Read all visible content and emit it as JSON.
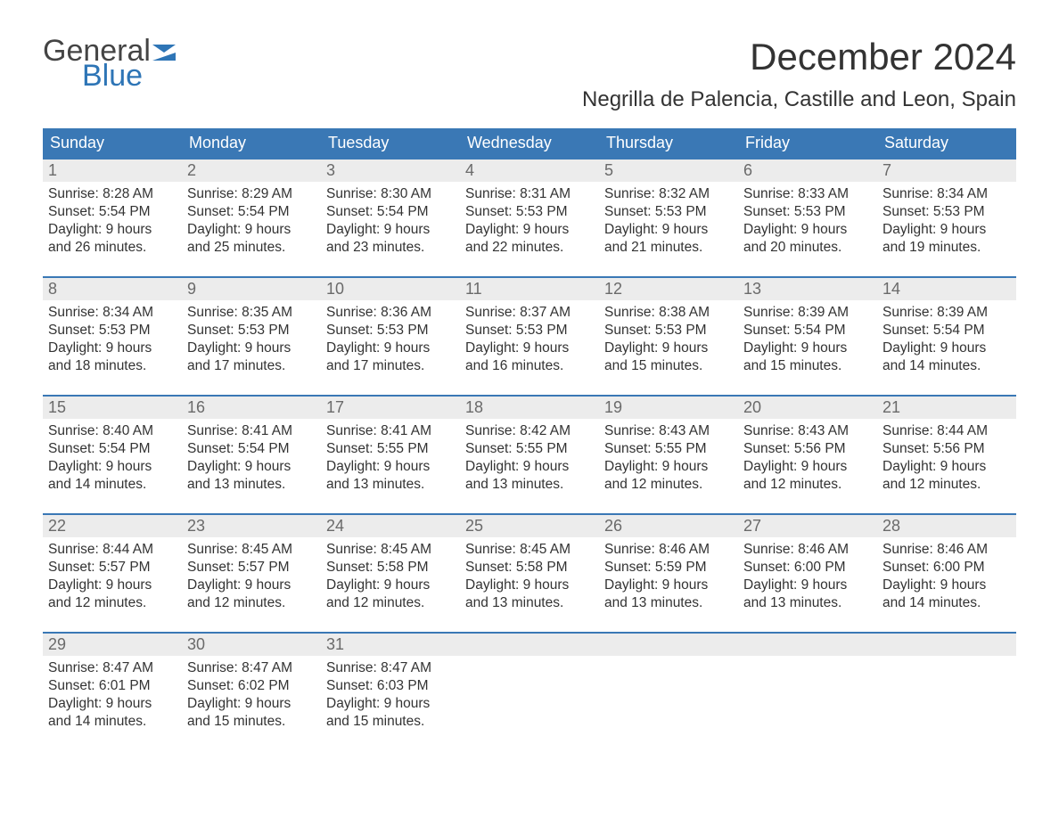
{
  "logo": {
    "text_top": "General",
    "text_bottom": "Blue",
    "flag_color": "#2e75b6"
  },
  "title": "December 2024",
  "location": "Negrilla de Palencia, Castille and Leon, Spain",
  "colors": {
    "header_bg": "#3a78b5",
    "header_text": "#ffffff",
    "daynum_bg": "#ececec",
    "daynum_border": "#3a78b5",
    "daynum_text": "#6a6a6a",
    "body_text": "#333333",
    "logo_blue": "#2e75b6",
    "logo_gray": "#444444",
    "background": "#ffffff"
  },
  "typography": {
    "month_title_fontsize": 42,
    "location_fontsize": 24,
    "weekday_fontsize": 18,
    "daynum_fontsize": 18,
    "details_fontsize": 15.5,
    "logo_fontsize": 34
  },
  "weekdays": [
    "Sunday",
    "Monday",
    "Tuesday",
    "Wednesday",
    "Thursday",
    "Friday",
    "Saturday"
  ],
  "weeks": [
    [
      {
        "day": "1",
        "sunrise": "Sunrise: 8:28 AM",
        "sunset": "Sunset: 5:54 PM",
        "daylight1": "Daylight: 9 hours",
        "daylight2": "and 26 minutes."
      },
      {
        "day": "2",
        "sunrise": "Sunrise: 8:29 AM",
        "sunset": "Sunset: 5:54 PM",
        "daylight1": "Daylight: 9 hours",
        "daylight2": "and 25 minutes."
      },
      {
        "day": "3",
        "sunrise": "Sunrise: 8:30 AM",
        "sunset": "Sunset: 5:54 PM",
        "daylight1": "Daylight: 9 hours",
        "daylight2": "and 23 minutes."
      },
      {
        "day": "4",
        "sunrise": "Sunrise: 8:31 AM",
        "sunset": "Sunset: 5:53 PM",
        "daylight1": "Daylight: 9 hours",
        "daylight2": "and 22 minutes."
      },
      {
        "day": "5",
        "sunrise": "Sunrise: 8:32 AM",
        "sunset": "Sunset: 5:53 PM",
        "daylight1": "Daylight: 9 hours",
        "daylight2": "and 21 minutes."
      },
      {
        "day": "6",
        "sunrise": "Sunrise: 8:33 AM",
        "sunset": "Sunset: 5:53 PM",
        "daylight1": "Daylight: 9 hours",
        "daylight2": "and 20 minutes."
      },
      {
        "day": "7",
        "sunrise": "Sunrise: 8:34 AM",
        "sunset": "Sunset: 5:53 PM",
        "daylight1": "Daylight: 9 hours",
        "daylight2": "and 19 minutes."
      }
    ],
    [
      {
        "day": "8",
        "sunrise": "Sunrise: 8:34 AM",
        "sunset": "Sunset: 5:53 PM",
        "daylight1": "Daylight: 9 hours",
        "daylight2": "and 18 minutes."
      },
      {
        "day": "9",
        "sunrise": "Sunrise: 8:35 AM",
        "sunset": "Sunset: 5:53 PM",
        "daylight1": "Daylight: 9 hours",
        "daylight2": "and 17 minutes."
      },
      {
        "day": "10",
        "sunrise": "Sunrise: 8:36 AM",
        "sunset": "Sunset: 5:53 PM",
        "daylight1": "Daylight: 9 hours",
        "daylight2": "and 17 minutes."
      },
      {
        "day": "11",
        "sunrise": "Sunrise: 8:37 AM",
        "sunset": "Sunset: 5:53 PM",
        "daylight1": "Daylight: 9 hours",
        "daylight2": "and 16 minutes."
      },
      {
        "day": "12",
        "sunrise": "Sunrise: 8:38 AM",
        "sunset": "Sunset: 5:53 PM",
        "daylight1": "Daylight: 9 hours",
        "daylight2": "and 15 minutes."
      },
      {
        "day": "13",
        "sunrise": "Sunrise: 8:39 AM",
        "sunset": "Sunset: 5:54 PM",
        "daylight1": "Daylight: 9 hours",
        "daylight2": "and 15 minutes."
      },
      {
        "day": "14",
        "sunrise": "Sunrise: 8:39 AM",
        "sunset": "Sunset: 5:54 PM",
        "daylight1": "Daylight: 9 hours",
        "daylight2": "and 14 minutes."
      }
    ],
    [
      {
        "day": "15",
        "sunrise": "Sunrise: 8:40 AM",
        "sunset": "Sunset: 5:54 PM",
        "daylight1": "Daylight: 9 hours",
        "daylight2": "and 14 minutes."
      },
      {
        "day": "16",
        "sunrise": "Sunrise: 8:41 AM",
        "sunset": "Sunset: 5:54 PM",
        "daylight1": "Daylight: 9 hours",
        "daylight2": "and 13 minutes."
      },
      {
        "day": "17",
        "sunrise": "Sunrise: 8:41 AM",
        "sunset": "Sunset: 5:55 PM",
        "daylight1": "Daylight: 9 hours",
        "daylight2": "and 13 minutes."
      },
      {
        "day": "18",
        "sunrise": "Sunrise: 8:42 AM",
        "sunset": "Sunset: 5:55 PM",
        "daylight1": "Daylight: 9 hours",
        "daylight2": "and 13 minutes."
      },
      {
        "day": "19",
        "sunrise": "Sunrise: 8:43 AM",
        "sunset": "Sunset: 5:55 PM",
        "daylight1": "Daylight: 9 hours",
        "daylight2": "and 12 minutes."
      },
      {
        "day": "20",
        "sunrise": "Sunrise: 8:43 AM",
        "sunset": "Sunset: 5:56 PM",
        "daylight1": "Daylight: 9 hours",
        "daylight2": "and 12 minutes."
      },
      {
        "day": "21",
        "sunrise": "Sunrise: 8:44 AM",
        "sunset": "Sunset: 5:56 PM",
        "daylight1": "Daylight: 9 hours",
        "daylight2": "and 12 minutes."
      }
    ],
    [
      {
        "day": "22",
        "sunrise": "Sunrise: 8:44 AM",
        "sunset": "Sunset: 5:57 PM",
        "daylight1": "Daylight: 9 hours",
        "daylight2": "and 12 minutes."
      },
      {
        "day": "23",
        "sunrise": "Sunrise: 8:45 AM",
        "sunset": "Sunset: 5:57 PM",
        "daylight1": "Daylight: 9 hours",
        "daylight2": "and 12 minutes."
      },
      {
        "day": "24",
        "sunrise": "Sunrise: 8:45 AM",
        "sunset": "Sunset: 5:58 PM",
        "daylight1": "Daylight: 9 hours",
        "daylight2": "and 12 minutes."
      },
      {
        "day": "25",
        "sunrise": "Sunrise: 8:45 AM",
        "sunset": "Sunset: 5:58 PM",
        "daylight1": "Daylight: 9 hours",
        "daylight2": "and 13 minutes."
      },
      {
        "day": "26",
        "sunrise": "Sunrise: 8:46 AM",
        "sunset": "Sunset: 5:59 PM",
        "daylight1": "Daylight: 9 hours",
        "daylight2": "and 13 minutes."
      },
      {
        "day": "27",
        "sunrise": "Sunrise: 8:46 AM",
        "sunset": "Sunset: 6:00 PM",
        "daylight1": "Daylight: 9 hours",
        "daylight2": "and 13 minutes."
      },
      {
        "day": "28",
        "sunrise": "Sunrise: 8:46 AM",
        "sunset": "Sunset: 6:00 PM",
        "daylight1": "Daylight: 9 hours",
        "daylight2": "and 14 minutes."
      }
    ],
    [
      {
        "day": "29",
        "sunrise": "Sunrise: 8:47 AM",
        "sunset": "Sunset: 6:01 PM",
        "daylight1": "Daylight: 9 hours",
        "daylight2": "and 14 minutes."
      },
      {
        "day": "30",
        "sunrise": "Sunrise: 8:47 AM",
        "sunset": "Sunset: 6:02 PM",
        "daylight1": "Daylight: 9 hours",
        "daylight2": "and 15 minutes."
      },
      {
        "day": "31",
        "sunrise": "Sunrise: 8:47 AM",
        "sunset": "Sunset: 6:03 PM",
        "daylight1": "Daylight: 9 hours",
        "daylight2": "and 15 minutes."
      },
      {
        "day": "",
        "sunrise": "",
        "sunset": "",
        "daylight1": "",
        "daylight2": ""
      },
      {
        "day": "",
        "sunrise": "",
        "sunset": "",
        "daylight1": "",
        "daylight2": ""
      },
      {
        "day": "",
        "sunrise": "",
        "sunset": "",
        "daylight1": "",
        "daylight2": ""
      },
      {
        "day": "",
        "sunrise": "",
        "sunset": "",
        "daylight1": "",
        "daylight2": ""
      }
    ]
  ]
}
